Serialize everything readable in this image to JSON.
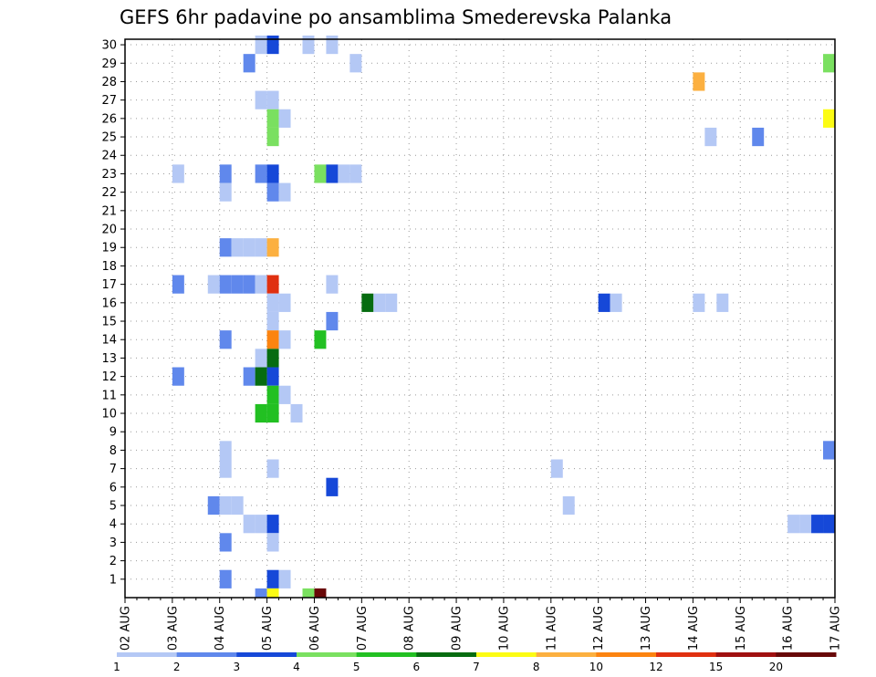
{
  "chart_data": {
    "type": "heatmap",
    "title": "GEFS 6hr padavine po ansamblima Smederevska Palanka",
    "x_tick_labels": [
      "02 AUG",
      "03 AUG",
      "04 AUG",
      "05 AUG",
      "06 AUG",
      "07 AUG",
      "08 AUG",
      "09 AUG",
      "10 AUG",
      "11 AUG",
      "12 AUG",
      "13 AUG",
      "14 AUG",
      "15 AUG",
      "16 AUG",
      "17 AUG"
    ],
    "x_unit": "6-hour step (4 per day), 0 = 02 AUG 00Z",
    "y_ticks": [
      1,
      2,
      3,
      4,
      5,
      6,
      7,
      8,
      9,
      10,
      11,
      12,
      13,
      14,
      15,
      16,
      17,
      18,
      19,
      20,
      21,
      22,
      23,
      24,
      25,
      26,
      27,
      28,
      29,
      30
    ],
    "ylim": [
      0,
      30
    ],
    "grid": true,
    "colorbar": {
      "labels": [
        "1",
        "2",
        "3",
        "4",
        "5",
        "6",
        "7",
        "8",
        "10",
        "12",
        "15",
        "20"
      ],
      "colors": [
        "#b4c8f5",
        "#6088ec",
        "#1648d8",
        "#7ae060",
        "#22c022",
        "#066c10",
        "#fcfc14",
        "#fcb040",
        "#fc8410",
        "#e03010",
        "#a01010",
        "#680808"
      ]
    },
    "cells": [
      {
        "x": 11,
        "y": 30,
        "c": 0
      },
      {
        "x": 12,
        "y": 30,
        "c": 2
      },
      {
        "x": 15,
        "y": 30,
        "c": 0
      },
      {
        "x": 17,
        "y": 30,
        "c": 0
      },
      {
        "x": 10,
        "y": 29,
        "c": 1
      },
      {
        "x": 19,
        "y": 29,
        "c": 0
      },
      {
        "x": 59,
        "y": 29,
        "c": 3
      },
      {
        "x": 48,
        "y": 28,
        "c": 7
      },
      {
        "x": 11,
        "y": 27,
        "c": 0
      },
      {
        "x": 12,
        "y": 27,
        "c": 0
      },
      {
        "x": 12,
        "y": 26,
        "c": 3
      },
      {
        "x": 13,
        "y": 26,
        "c": 0
      },
      {
        "x": 59,
        "y": 26,
        "c": 6
      },
      {
        "x": 12,
        "y": 25,
        "c": 3
      },
      {
        "x": 49,
        "y": 25,
        "c": 0
      },
      {
        "x": 53,
        "y": 25,
        "c": 1
      },
      {
        "x": 4,
        "y": 23,
        "c": 0
      },
      {
        "x": 8,
        "y": 23,
        "c": 1
      },
      {
        "x": 11,
        "y": 23,
        "c": 1
      },
      {
        "x": 12,
        "y": 23,
        "c": 2
      },
      {
        "x": 16,
        "y": 23,
        "c": 3
      },
      {
        "x": 17,
        "y": 23,
        "c": 2
      },
      {
        "x": 18,
        "y": 23,
        "c": 0
      },
      {
        "x": 19,
        "y": 23,
        "c": 0
      },
      {
        "x": 8,
        "y": 22,
        "c": 0
      },
      {
        "x": 12,
        "y": 22,
        "c": 1
      },
      {
        "x": 13,
        "y": 22,
        "c": 0
      },
      {
        "x": 8,
        "y": 19,
        "c": 1
      },
      {
        "x": 9,
        "y": 19,
        "c": 0
      },
      {
        "x": 10,
        "y": 19,
        "c": 0
      },
      {
        "x": 11,
        "y": 19,
        "c": 0
      },
      {
        "x": 12,
        "y": 19,
        "c": 7
      },
      {
        "x": 4,
        "y": 17,
        "c": 1
      },
      {
        "x": 7,
        "y": 17,
        "c": 0
      },
      {
        "x": 8,
        "y": 17,
        "c": 1
      },
      {
        "x": 9,
        "y": 17,
        "c": 1
      },
      {
        "x": 10,
        "y": 17,
        "c": 1
      },
      {
        "x": 11,
        "y": 17,
        "c": 0
      },
      {
        "x": 12,
        "y": 17,
        "c": 9
      },
      {
        "x": 17,
        "y": 17,
        "c": 0
      },
      {
        "x": 12,
        "y": 16,
        "c": 0
      },
      {
        "x": 13,
        "y": 16,
        "c": 0
      },
      {
        "x": 20,
        "y": 16,
        "c": 5
      },
      {
        "x": 21,
        "y": 16,
        "c": 0
      },
      {
        "x": 22,
        "y": 16,
        "c": 0
      },
      {
        "x": 40,
        "y": 16,
        "c": 2
      },
      {
        "x": 41,
        "y": 16,
        "c": 0
      },
      {
        "x": 48,
        "y": 16,
        "c": 0
      },
      {
        "x": 50,
        "y": 16,
        "c": 0
      },
      {
        "x": 12,
        "y": 15,
        "c": 0
      },
      {
        "x": 17,
        "y": 15,
        "c": 1
      },
      {
        "x": 8,
        "y": 14,
        "c": 1
      },
      {
        "x": 12,
        "y": 14,
        "c": 8
      },
      {
        "x": 13,
        "y": 14,
        "c": 0
      },
      {
        "x": 16,
        "y": 14,
        "c": 4
      },
      {
        "x": 11,
        "y": 13,
        "c": 0
      },
      {
        "x": 12,
        "y": 13,
        "c": 5
      },
      {
        "x": 4,
        "y": 12,
        "c": 1
      },
      {
        "x": 10,
        "y": 12,
        "c": 1
      },
      {
        "x": 11,
        "y": 12,
        "c": 5
      },
      {
        "x": 12,
        "y": 12,
        "c": 2
      },
      {
        "x": 12,
        "y": 11,
        "c": 4
      },
      {
        "x": 13,
        "y": 11,
        "c": 0
      },
      {
        "x": 11,
        "y": 10,
        "c": 4
      },
      {
        "x": 12,
        "y": 10,
        "c": 4
      },
      {
        "x": 14,
        "y": 10,
        "c": 0
      },
      {
        "x": 8,
        "y": 8,
        "c": 0
      },
      {
        "x": 59,
        "y": 8,
        "c": 1
      },
      {
        "x": 8,
        "y": 7,
        "c": 0
      },
      {
        "x": 12,
        "y": 7,
        "c": 0
      },
      {
        "x": 36,
        "y": 7,
        "c": 0
      },
      {
        "x": 17,
        "y": 6,
        "c": 2
      },
      {
        "x": 7,
        "y": 5,
        "c": 1
      },
      {
        "x": 8,
        "y": 5,
        "c": 0
      },
      {
        "x": 9,
        "y": 5,
        "c": 0
      },
      {
        "x": 37,
        "y": 5,
        "c": 0
      },
      {
        "x": 10,
        "y": 4,
        "c": 0
      },
      {
        "x": 11,
        "y": 4,
        "c": 0
      },
      {
        "x": 12,
        "y": 4,
        "c": 2
      },
      {
        "x": 56,
        "y": 4,
        "c": 0
      },
      {
        "x": 57,
        "y": 4,
        "c": 0
      },
      {
        "x": 58,
        "y": 4,
        "c": 2
      },
      {
        "x": 59,
        "y": 4,
        "c": 2
      },
      {
        "x": 8,
        "y": 3,
        "c": 1
      },
      {
        "x": 12,
        "y": 3,
        "c": 0
      },
      {
        "x": 8,
        "y": 1,
        "c": 1
      },
      {
        "x": 12,
        "y": 1,
        "c": 2
      },
      {
        "x": 13,
        "y": 1,
        "c": 0
      },
      {
        "x": 11,
        "y": 0,
        "c": 1
      },
      {
        "x": 12,
        "y": 0,
        "c": 6
      },
      {
        "x": 15,
        "y": 0,
        "c": 3
      },
      {
        "x": 16,
        "y": 0,
        "c": 11
      }
    ]
  }
}
